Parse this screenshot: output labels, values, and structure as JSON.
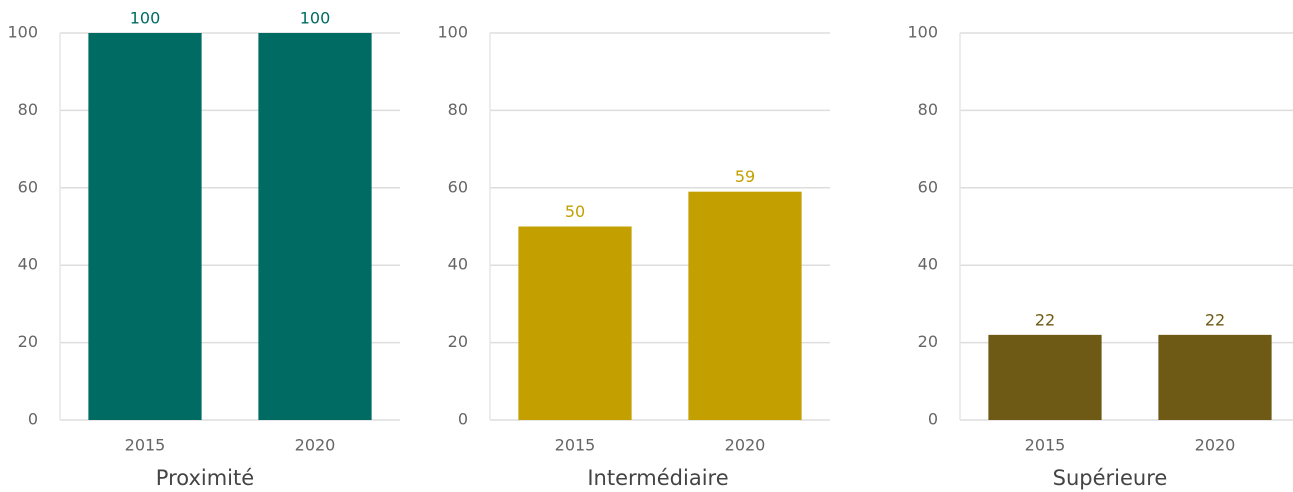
{
  "chart_data": [
    {
      "type": "bar",
      "title": "Proximité",
      "categories": [
        "2015",
        "2020"
      ],
      "values": [
        100,
        100
      ],
      "color": "#006b63",
      "ylim": [
        0,
        100
      ],
      "yticks": [
        0,
        20,
        40,
        60,
        80,
        100
      ],
      "grid": true
    },
    {
      "type": "bar",
      "title": "Intermédiaire",
      "categories": [
        "2015",
        "2020"
      ],
      "values": [
        50,
        59
      ],
      "color": "#c49f00",
      "ylim": [
        0,
        100
      ],
      "yticks": [
        0,
        20,
        40,
        60,
        80,
        100
      ],
      "grid": true
    },
    {
      "type": "bar",
      "title": "Supérieure",
      "categories": [
        "2015",
        "2020"
      ],
      "values": [
        22,
        22
      ],
      "color": "#6e5a14",
      "ylim": [
        0,
        100
      ],
      "yticks": [
        0,
        20,
        40,
        60,
        80,
        100
      ],
      "grid": true
    }
  ]
}
